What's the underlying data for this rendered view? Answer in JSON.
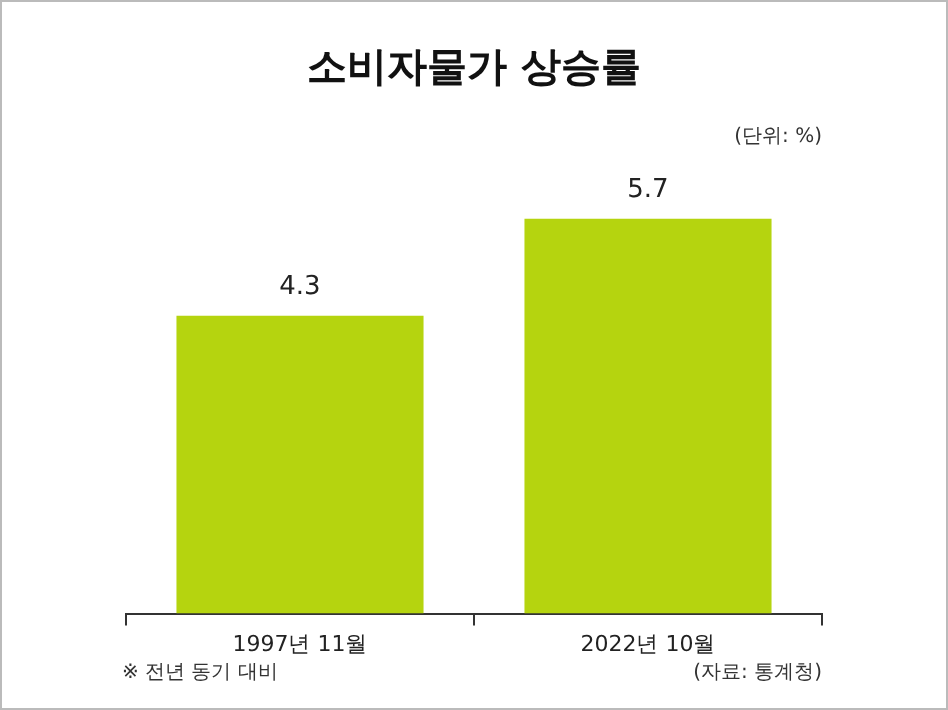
{
  "chart_data": {
    "type": "bar",
    "title": "소비자물가 상승률",
    "categories": [
      "1997년 11월",
      "2022년 10월"
    ],
    "values": [
      4.3,
      5.7
    ],
    "color": "#b5d40f",
    "data_labels": true,
    "grid": false,
    "legend": false,
    "annotations": [
      "(단위: %)",
      "※ 전년 동기 대비",
      "(자료: 통계청)"
    ]
  }
}
